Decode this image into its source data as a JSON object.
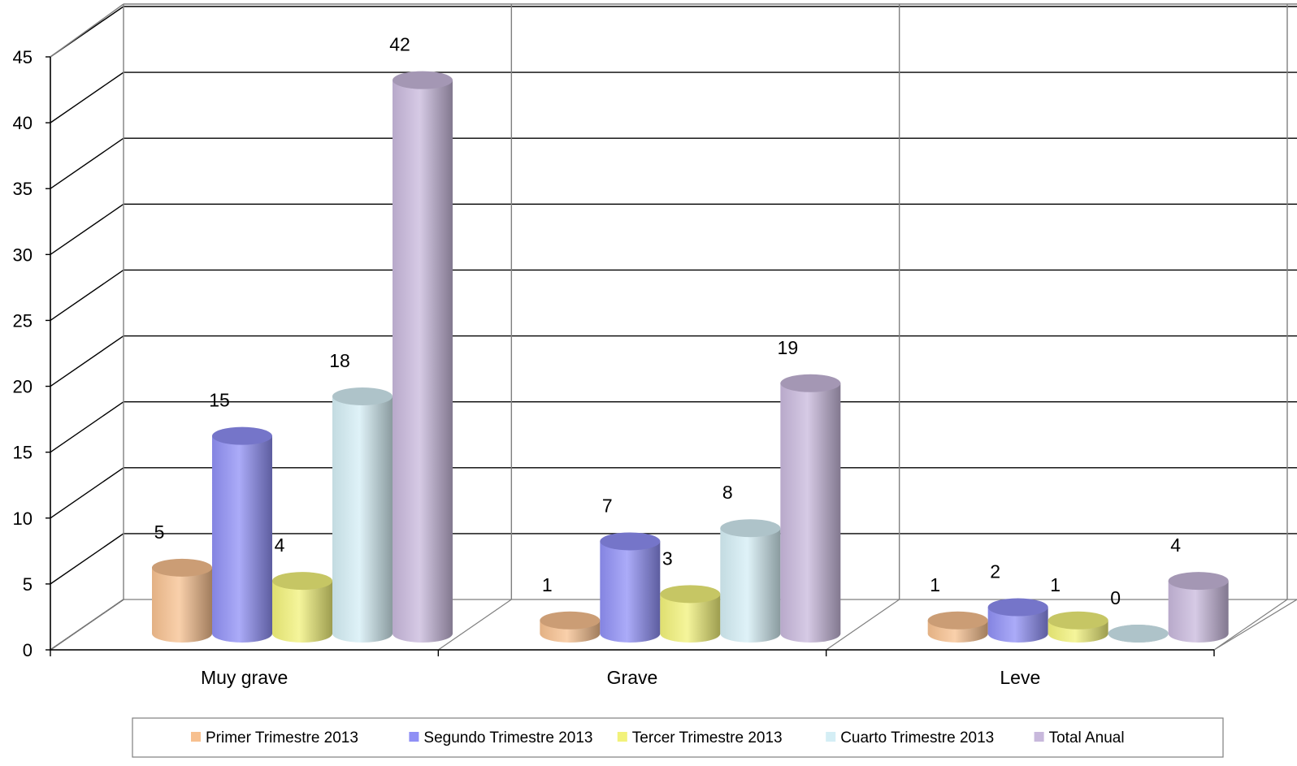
{
  "chart_data": {
    "type": "bar",
    "categories": [
      "Muy grave",
      "Grave",
      "Leve"
    ],
    "series": [
      {
        "name": "Primer Trimestre 2013",
        "values": [
          5,
          1,
          1
        ],
        "color": "#f7c08f"
      },
      {
        "name": "Segundo Trimestre 2013",
        "values": [
          15,
          7,
          2
        ],
        "color": "#8f8ff5"
      },
      {
        "name": "Tercer Trimestre 2013",
        "values": [
          4,
          3,
          1
        ],
        "color": "#f2f27a"
      },
      {
        "name": "Cuarto Trimestre 2013",
        "values": [
          18,
          8,
          0
        ],
        "color": "#d4eef5"
      },
      {
        "name": "Total Anual",
        "values": [
          42,
          19,
          4
        ],
        "color": "#c8b8dc"
      }
    ],
    "y_ticks": [
      "0",
      "5",
      "10",
      "15",
      "20",
      "25",
      "30",
      "35",
      "40",
      "45"
    ],
    "ylim": [
      0,
      45
    ],
    "grid": true,
    "legend_position": "bottom",
    "style": "3d-cylinder"
  }
}
